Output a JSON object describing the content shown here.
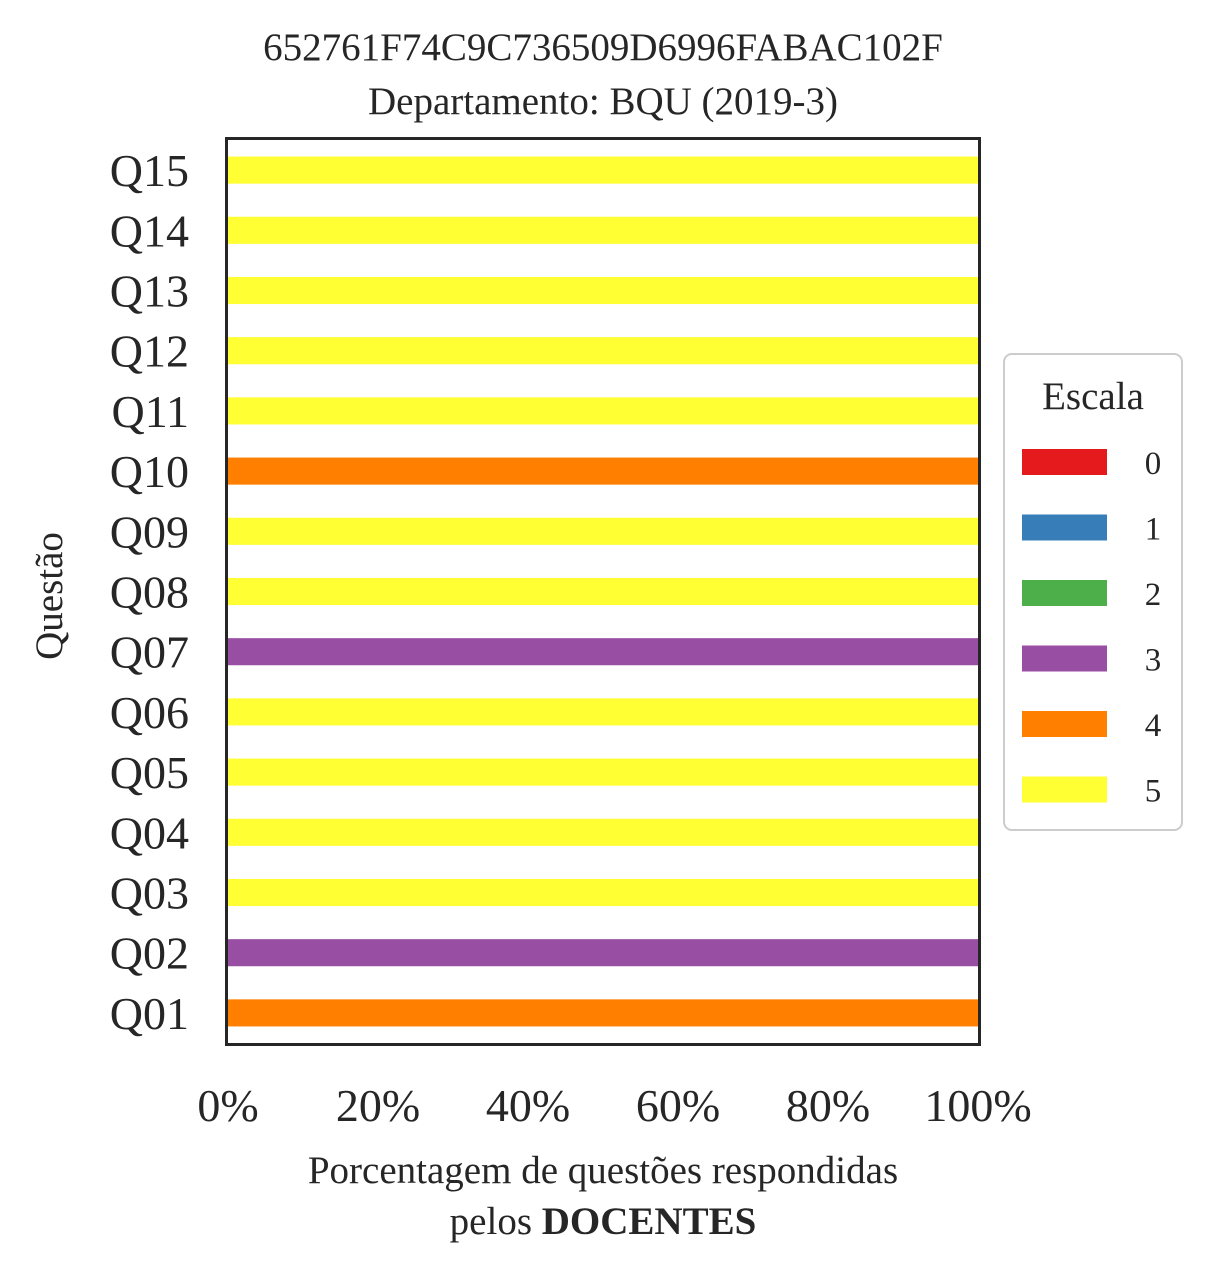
{
  "chart_data": {
    "type": "bar",
    "orientation": "horizontal",
    "stacked": true,
    "title": [
      "652761F74C9C736509D6996FABAC102F",
      "Departamento: BQU (2019-3)"
    ],
    "xlabel_line1": "Porcentagem de questões respondidas",
    "xlabel_line2_prefix": "pelos ",
    "xlabel_line2_bold": "DOCENTES",
    "ylabel": "Questão",
    "xlim": [
      0,
      100
    ],
    "xticks": [
      "0%",
      "20%",
      "40%",
      "60%",
      "80%",
      "100%"
    ],
    "xtick_values": [
      0,
      20,
      40,
      60,
      80,
      100
    ],
    "categories": [
      "Q01",
      "Q02",
      "Q03",
      "Q04",
      "Q05",
      "Q06",
      "Q07",
      "Q08",
      "Q09",
      "Q10",
      "Q11",
      "Q12",
      "Q13",
      "Q14",
      "Q15"
    ],
    "series": [
      {
        "name": "0",
        "color": "#e41a1c",
        "values": [
          0,
          0,
          0,
          0,
          0,
          0,
          0,
          0,
          0,
          0,
          0,
          0,
          0,
          0,
          0
        ]
      },
      {
        "name": "1",
        "color": "#377eb8",
        "values": [
          0,
          0,
          0,
          0,
          0,
          0,
          0,
          0,
          0,
          0,
          0,
          0,
          0,
          0,
          0
        ]
      },
      {
        "name": "2",
        "color": "#4daf4a",
        "values": [
          0,
          0,
          0,
          0,
          0,
          0,
          0,
          0,
          0,
          0,
          0,
          0,
          0,
          0,
          0
        ]
      },
      {
        "name": "3",
        "color": "#984ea3",
        "values": [
          0,
          100,
          0,
          0,
          0,
          0,
          100,
          0,
          0,
          0,
          0,
          0,
          0,
          0,
          0
        ]
      },
      {
        "name": "4",
        "color": "#ff7f00",
        "values": [
          100,
          0,
          0,
          0,
          0,
          0,
          0,
          0,
          0,
          100,
          0,
          0,
          0,
          0,
          0
        ]
      },
      {
        "name": "5",
        "color": "#ffff33",
        "values": [
          0,
          0,
          100,
          100,
          100,
          100,
          0,
          100,
          100,
          0,
          100,
          100,
          100,
          100,
          100
        ]
      }
    ],
    "legend": {
      "title": "Escala",
      "placement": "center-right"
    },
    "grid": false
  }
}
